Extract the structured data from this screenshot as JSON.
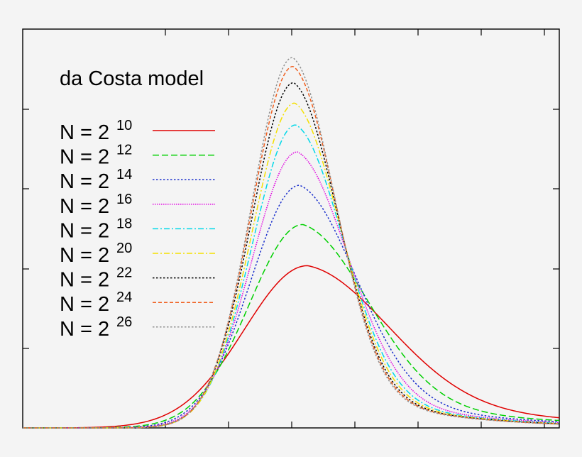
{
  "chart_data": {
    "type": "line",
    "title": "da Costa model",
    "xlabel": "",
    "ylabel": "",
    "x_tick_labels": [],
    "y_tick_labels": [],
    "xlim": [
      0,
      100
    ],
    "ylim": [
      0,
      100
    ],
    "legend_position": "top-left",
    "grid": false,
    "series": [
      {
        "name_base": "N = 2",
        "exponent": "10",
        "color": "#e00000",
        "dash": "solid",
        "peak_x": 53.1,
        "peak_y": 43.8,
        "sigma_left": 11.8,
        "sigma_right": 15.4,
        "skew": 0.55
      },
      {
        "name_base": "N = 2",
        "exponent": "12",
        "color": "#00d000",
        "dash": "dashed",
        "peak_x": 52.2,
        "peak_y": 54.9,
        "sigma_left": 10.0,
        "sigma_right": 12.4,
        "skew": 0.52
      },
      {
        "name_base": "N = 2",
        "exponent": "14",
        "color": "#1a2fcc",
        "dash": "dotted",
        "peak_x": 51.6,
        "peak_y": 65.5,
        "sigma_left": 9.1,
        "sigma_right": 10.7,
        "skew": 0.5
      },
      {
        "name_base": "N = 2",
        "exponent": "16",
        "color": "#e000e0",
        "dash": "dense-dotted",
        "peak_x": 51.2,
        "peak_y": 74.5,
        "sigma_left": 8.5,
        "sigma_right": 9.6,
        "skew": 0.48
      },
      {
        "name_base": "N = 2",
        "exponent": "18",
        "color": "#00d8e8",
        "dash": "dash-dot",
        "peak_x": 50.9,
        "peak_y": 81.8,
        "sigma_left": 8.1,
        "sigma_right": 9.0,
        "skew": 0.46
      },
      {
        "name_base": "N = 2",
        "exponent": "20",
        "color": "#f4e000",
        "dash": "dash-dot",
        "peak_x": 50.7,
        "peak_y": 87.7,
        "sigma_left": 7.9,
        "sigma_right": 8.6,
        "skew": 0.45
      },
      {
        "name_base": "N = 2",
        "exponent": "22",
        "color": "#000000",
        "dash": "dotted",
        "peak_x": 50.5,
        "peak_y": 93.2,
        "sigma_left": 7.8,
        "sigma_right": 8.3,
        "skew": 0.44
      },
      {
        "name_base": "N = 2",
        "exponent": "24",
        "color": "#f06020",
        "dash": "dashed-fine",
        "peak_x": 50.4,
        "peak_y": 97.6,
        "sigma_left": 7.7,
        "sigma_right": 8.1,
        "skew": 0.43
      },
      {
        "name_base": "N = 2",
        "exponent": "26",
        "color": "#909090",
        "dash": "dotted",
        "peak_x": 50.3,
        "peak_y": 100.0,
        "sigma_left": 7.6,
        "sigma_right": 8.0,
        "skew": 0.42
      }
    ]
  }
}
